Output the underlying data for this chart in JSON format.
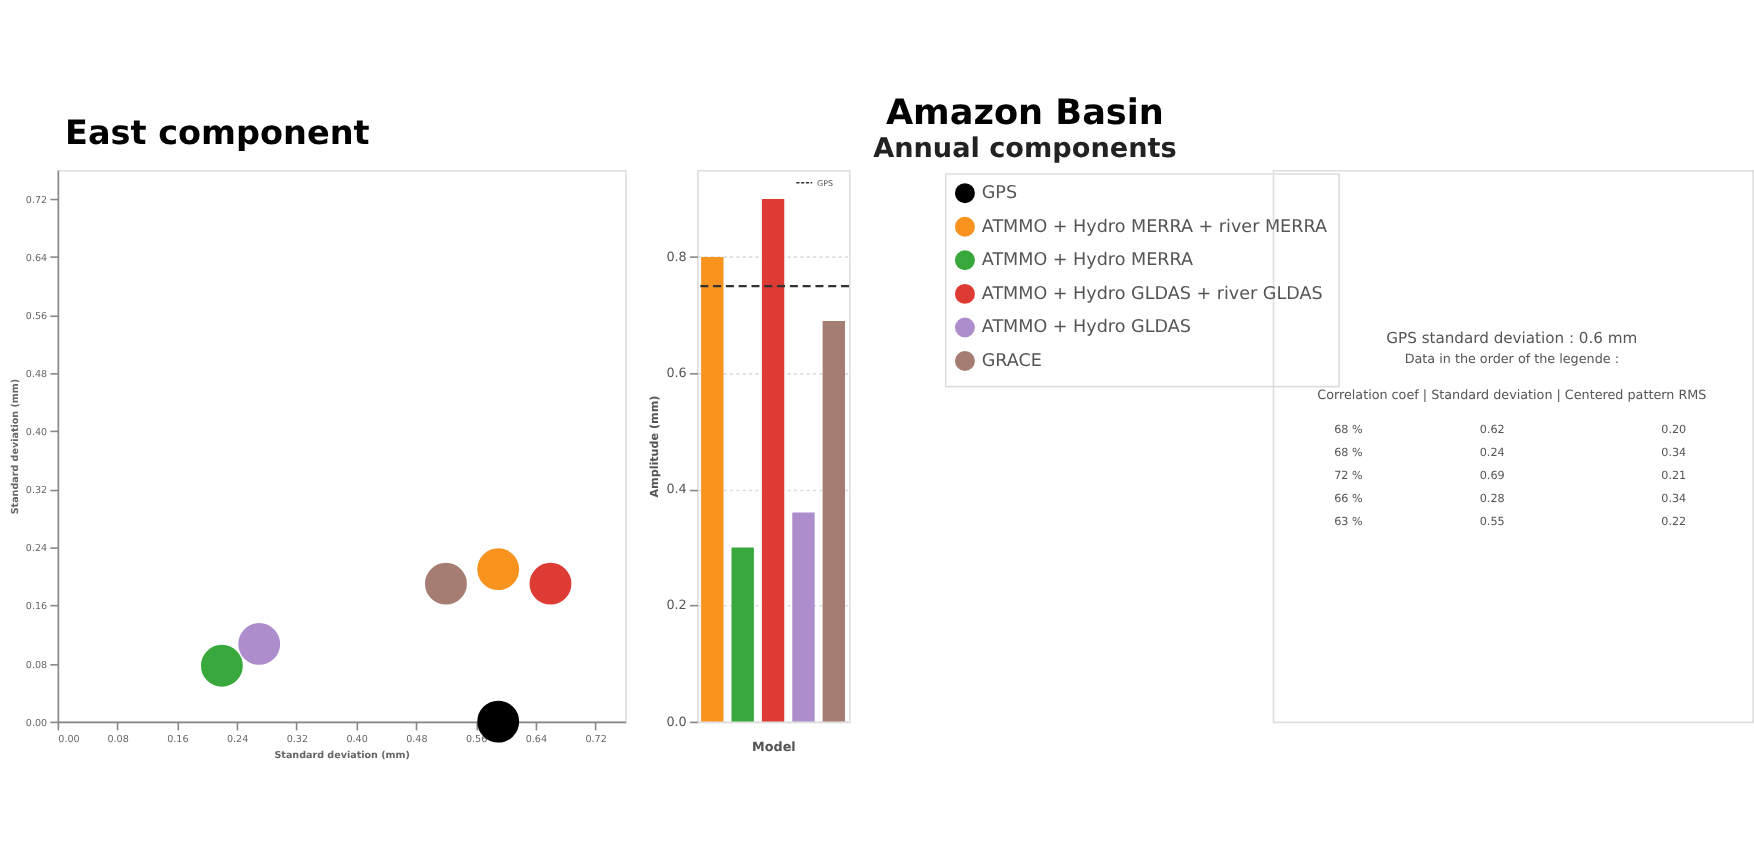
{
  "chart_data": [
    {
      "type": "scatter",
      "title": "East component",
      "xlabel": "Standard deviation (mm)",
      "ylabel": "Standard deviation (mm)",
      "marker": "circle",
      "legend": "top right",
      "xlim": [
        0,
        0.76
      ],
      "ylim": [
        0,
        0.76
      ],
      "xticks": [
        {
          "value": 0,
          "label": "0.00"
        },
        {
          "value": 0.08,
          "label": "0.08"
        },
        {
          "value": 0.16,
          "label": "0.16"
        },
        {
          "value": 0.24,
          "label": "0.24"
        },
        {
          "value": 0.32,
          "label": "0.32"
        },
        {
          "value": 0.4,
          "label": "0.40"
        },
        {
          "value": 0.48,
          "label": "0.48"
        },
        {
          "value": 0.56,
          "label": "0.56"
        },
        {
          "value": 0.64,
          "label": "0.64"
        },
        {
          "value": 0.72,
          "label": "0.72"
        }
      ],
      "yticks": [
        {
          "value": 0,
          "label": "0.00"
        },
        {
          "value": 0.08,
          "label": "0.08"
        },
        {
          "value": 0.16,
          "label": "0.16"
        },
        {
          "value": 0.24,
          "label": "0.24"
        },
        {
          "value": 0.32,
          "label": "0.32"
        },
        {
          "value": 0.4,
          "label": "0.40"
        },
        {
          "value": 0.48,
          "label": "0.48"
        },
        {
          "value": 0.56,
          "label": "0.56"
        },
        {
          "value": 0.64,
          "label": "0.64"
        },
        {
          "value": 0.72,
          "label": "0.72"
        }
      ],
      "series": [
        {
          "name": "GPS",
          "color": "#000000",
          "x": [
            0.59
          ],
          "values": [
            0
          ]
        },
        {
          "name": "ATMMO + Hydro MERRA + river MERRA",
          "color": "#f7931e",
          "x": [
            0.59
          ],
          "values": [
            0.21
          ]
        },
        {
          "name": "ATMMO + Hydro MERRA",
          "color": "#38a83c",
          "x": [
            0.22
          ],
          "values": [
            0.077
          ]
        },
        {
          "name": "ATMMO + Hydro GLDAS + river GLDAS",
          "color": "#dd3b33",
          "x": [
            0.66
          ],
          "values": [
            0.19
          ]
        },
        {
          "name": "ATMMO + Hydro GLDAS",
          "color": "#ae8dcc",
          "x": [
            0.27
          ],
          "values": [
            0.107
          ]
        },
        {
          "name": "GRACE",
          "color": "#a67d72",
          "x": [
            0.52
          ],
          "values": [
            0.19
          ]
        }
      ]
    },
    {
      "type": "bar",
      "xlabel": "Model",
      "ylabel": "Amplitude (mm)",
      "categories": [
        null,
        null,
        null,
        null,
        null
      ],
      "values": [
        0.8,
        0.3,
        0.9,
        0.36,
        0.69
      ],
      "colors": [
        "#f7931e",
        "#38a83c",
        "#dd3b33",
        "#ae8dcc",
        "#a67d72"
      ],
      "ylim": [
        0,
        0.95
      ],
      "yticks": [
        {
          "value": 0,
          "label": "0.0"
        },
        {
          "value": 0.2,
          "label": "0.2"
        },
        {
          "value": 0.4,
          "label": "0.4"
        },
        {
          "value": 0.6,
          "label": "0.6"
        },
        {
          "value": 0.8,
          "label": "0.8"
        }
      ],
      "grid": "y",
      "ref_lines": [
        {
          "axis": "y",
          "value": 0.75,
          "label": "GPS",
          "color": "#333333",
          "line_style": "dashed"
        }
      ]
    },
    {
      "type": "other",
      "title": "Amazon Basin",
      "subtitle": "Annual components",
      "annotations": [
        "GPS standard deviation : 0.6 mm",
        "Data in the order of the legende :",
        "Correlation coef |  Standard deviation  | Centered pattern RMS",
        "68 %",
        "0.62",
        "0.20",
        "68 %",
        "0.24",
        "0.34",
        "72 %",
        "0.69",
        "0.21",
        "66 %",
        "0.28",
        "0.34",
        "63 %",
        "0.55",
        "0.22"
      ]
    }
  ]
}
